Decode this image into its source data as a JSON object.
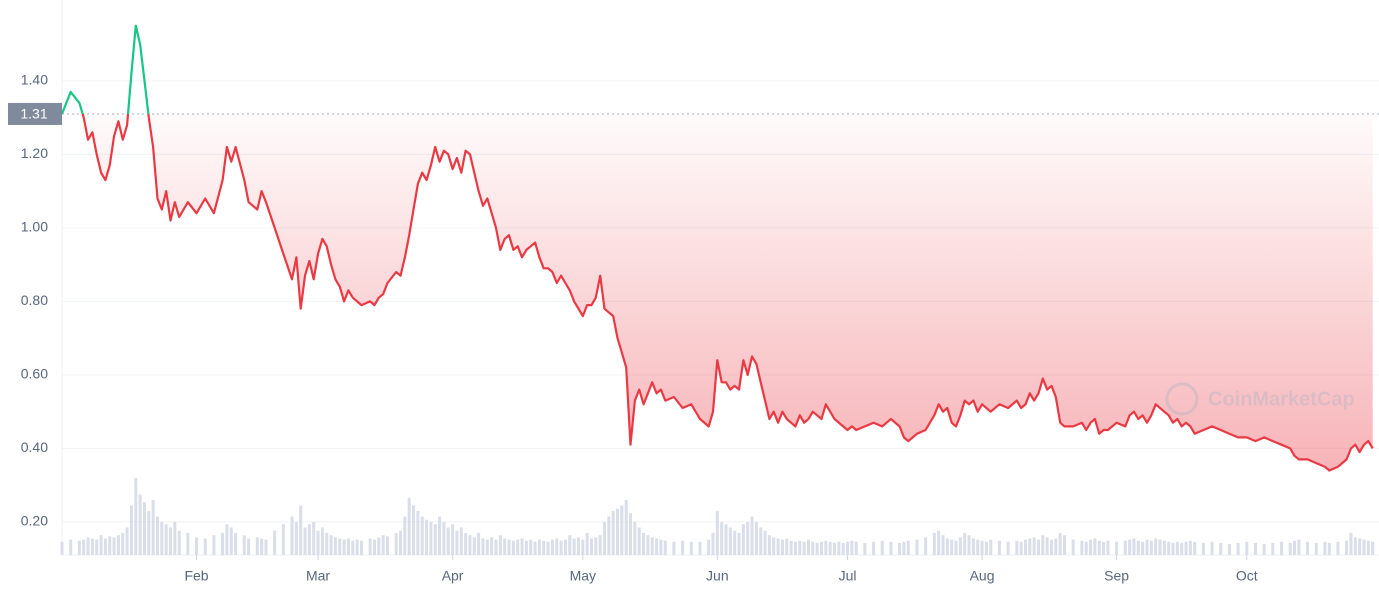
{
  "chart_data": {
    "type": "line",
    "watermark": "CoinMarketCap",
    "reference_line": 1.31,
    "color_up": "#16c784",
    "color_down": "#ea3943",
    "volume_color": "#cfd6e4",
    "xlim": [
      0,
      303
    ],
    "xticks": [
      {
        "value": 31,
        "label": "Feb"
      },
      {
        "value": 59,
        "label": "Mar"
      },
      {
        "value": 90,
        "label": "Apr"
      },
      {
        "value": 120,
        "label": "May"
      },
      {
        "value": 151,
        "label": "Jun"
      },
      {
        "value": 181,
        "label": "Jul"
      },
      {
        "value": 212,
        "label": "Aug"
      },
      {
        "value": 243,
        "label": "Sep"
      },
      {
        "value": 273,
        "label": "Oct"
      }
    ],
    "ylim": [
      0.11,
      1.62
    ],
    "yticks": [
      {
        "value": 0.2,
        "label": "0.20"
      },
      {
        "value": 0.4,
        "label": "0.40"
      },
      {
        "value": 0.6,
        "label": "0.60"
      },
      {
        "value": 0.8,
        "label": "0.80"
      },
      {
        "value": 1.0,
        "label": "1.00"
      },
      {
        "value": 1.2,
        "label": "1.20"
      },
      {
        "value": 1.4,
        "label": "1.40"
      }
    ],
    "grid": true,
    "y2lim": [
      0,
      100
    ],
    "x": [
      0,
      2,
      4,
      5,
      6,
      7,
      8,
      9,
      10,
      11,
      12,
      13,
      14,
      15,
      16,
      17,
      18,
      19,
      20,
      21,
      22,
      23,
      24,
      25,
      26,
      27,
      29,
      31,
      33,
      35,
      37,
      38,
      39,
      40,
      42,
      43,
      45,
      46,
      47,
      49,
      51,
      53,
      54,
      55,
      56,
      57,
      58,
      59,
      60,
      61,
      62,
      63,
      64,
      65,
      66,
      67,
      68,
      69,
      71,
      72,
      73,
      74,
      75,
      77,
      78,
      79,
      80,
      81,
      82,
      83,
      84,
      85,
      86,
      87,
      88,
      89,
      90,
      91,
      92,
      93,
      94,
      95,
      96,
      97,
      98,
      99,
      100,
      101,
      102,
      103,
      104,
      105,
      106,
      107,
      108,
      109,
      110,
      111,
      112,
      113,
      114,
      115,
      116,
      117,
      118,
      119,
      120,
      121,
      122,
      123,
      124,
      125,
      126,
      127,
      128,
      129,
      130,
      131,
      132,
      133,
      134,
      135,
      136,
      137,
      138,
      139,
      141,
      143,
      145,
      147,
      149,
      150,
      151,
      152,
      153,
      154,
      155,
      156,
      157,
      158,
      159,
      160,
      161,
      162,
      163,
      164,
      165,
      166,
      167,
      168,
      169,
      170,
      171,
      172,
      173,
      174,
      175,
      176,
      177,
      178,
      179,
      180,
      181,
      182,
      183,
      185,
      187,
      189,
      191,
      193,
      194,
      195,
      197,
      199,
      201,
      202,
      203,
      204,
      205,
      206,
      207,
      208,
      209,
      210,
      211,
      212,
      213,
      214,
      216,
      218,
      220,
      221,
      222,
      223,
      224,
      225,
      226,
      227,
      228,
      229,
      230,
      231,
      233,
      235,
      236,
      237,
      238,
      239,
      240,
      241,
      243,
      245,
      246,
      247,
      248,
      249,
      250,
      251,
      252,
      253,
      254,
      255,
      256,
      257,
      258,
      259,
      260,
      261,
      263,
      265,
      267,
      269,
      271,
      273,
      275,
      277,
      279,
      281,
      283,
      284,
      285,
      287,
      289,
      291,
      292,
      294,
      296,
      297,
      298,
      299,
      300,
      301,
      302
    ],
    "values": [
      1.31,
      1.37,
      1.34,
      1.3,
      1.24,
      1.26,
      1.2,
      1.15,
      1.13,
      1.17,
      1.25,
      1.29,
      1.24,
      1.28,
      1.42,
      1.55,
      1.5,
      1.4,
      1.3,
      1.22,
      1.08,
      1.05,
      1.1,
      1.02,
      1.07,
      1.03,
      1.07,
      1.04,
      1.08,
      1.04,
      1.13,
      1.22,
      1.18,
      1.22,
      1.13,
      1.07,
      1.05,
      1.1,
      1.07,
      1.0,
      0.93,
      0.86,
      0.92,
      0.78,
      0.87,
      0.91,
      0.86,
      0.93,
      0.97,
      0.95,
      0.9,
      0.86,
      0.84,
      0.8,
      0.83,
      0.81,
      0.8,
      0.79,
      0.8,
      0.79,
      0.81,
      0.82,
      0.85,
      0.88,
      0.87,
      0.92,
      0.98,
      1.05,
      1.12,
      1.15,
      1.13,
      1.17,
      1.22,
      1.18,
      1.21,
      1.2,
      1.16,
      1.19,
      1.15,
      1.21,
      1.2,
      1.15,
      1.1,
      1.06,
      1.08,
      1.04,
      1.0,
      0.94,
      0.97,
      0.98,
      0.94,
      0.95,
      0.92,
      0.94,
      0.95,
      0.96,
      0.92,
      0.89,
      0.89,
      0.88,
      0.85,
      0.87,
      0.85,
      0.83,
      0.8,
      0.78,
      0.76,
      0.79,
      0.79,
      0.81,
      0.87,
      0.78,
      0.77,
      0.76,
      0.7,
      0.66,
      0.62,
      0.41,
      0.53,
      0.56,
      0.52,
      0.55,
      0.58,
      0.55,
      0.56,
      0.53,
      0.54,
      0.51,
      0.52,
      0.48,
      0.46,
      0.5,
      0.64,
      0.58,
      0.58,
      0.56,
      0.57,
      0.56,
      0.64,
      0.6,
      0.65,
      0.63,
      0.58,
      0.53,
      0.48,
      0.5,
      0.47,
      0.5,
      0.48,
      0.47,
      0.46,
      0.49,
      0.47,
      0.48,
      0.5,
      0.49,
      0.48,
      0.52,
      0.5,
      0.48,
      0.47,
      0.46,
      0.45,
      0.46,
      0.45,
      0.46,
      0.47,
      0.46,
      0.48,
      0.46,
      0.43,
      0.42,
      0.44,
      0.45,
      0.49,
      0.52,
      0.5,
      0.51,
      0.47,
      0.46,
      0.49,
      0.53,
      0.52,
      0.53,
      0.5,
      0.52,
      0.51,
      0.5,
      0.52,
      0.51,
      0.53,
      0.51,
      0.52,
      0.55,
      0.53,
      0.55,
      0.59,
      0.56,
      0.57,
      0.54,
      0.47,
      0.46,
      0.46,
      0.47,
      0.45,
      0.47,
      0.48,
      0.44,
      0.45,
      0.45,
      0.47,
      0.46,
      0.49,
      0.5,
      0.48,
      0.49,
      0.47,
      0.49,
      0.52,
      0.51,
      0.5,
      0.49,
      0.47,
      0.48,
      0.46,
      0.47,
      0.46,
      0.44,
      0.45,
      0.46,
      0.45,
      0.44,
      0.43,
      0.43,
      0.42,
      0.43,
      0.42,
      0.41,
      0.4,
      0.38,
      0.37,
      0.37,
      0.36,
      0.35,
      0.34,
      0.35,
      0.37,
      0.4,
      0.41,
      0.39,
      0.41,
      0.42,
      0.4
    ],
    "volume": [
      12,
      14,
      13,
      14,
      16,
      15,
      14,
      18,
      15,
      17,
      16,
      18,
      20,
      25,
      45,
      70,
      55,
      48,
      40,
      50,
      35,
      30,
      28,
      25,
      30,
      22,
      20,
      16,
      15,
      18,
      20,
      28,
      25,
      20,
      18,
      15,
      16,
      15,
      14,
      22,
      28,
      35,
      30,
      45,
      25,
      28,
      30,
      22,
      25,
      20,
      18,
      16,
      15,
      14,
      15,
      13,
      14,
      13,
      15,
      14,
      16,
      18,
      17,
      20,
      22,
      35,
      52,
      45,
      40,
      35,
      32,
      30,
      28,
      35,
      30,
      25,
      28,
      22,
      25,
      20,
      18,
      16,
      20,
      15,
      14,
      16,
      14,
      18,
      15,
      14,
      13,
      14,
      15,
      13,
      14,
      12,
      14,
      13,
      12,
      14,
      15,
      13,
      14,
      18,
      15,
      16,
      14,
      20,
      15,
      16,
      18,
      30,
      35,
      40,
      42,
      45,
      50,
      38,
      30,
      25,
      20,
      18,
      16,
      15,
      14,
      13,
      12,
      13,
      12,
      12,
      14,
      20,
      40,
      30,
      28,
      25,
      22,
      20,
      28,
      30,
      35,
      30,
      25,
      22,
      18,
      16,
      15,
      14,
      15,
      13,
      12,
      13,
      12,
      14,
      12,
      11,
      12,
      13,
      12,
      11,
      12,
      11,
      12,
      13,
      12,
      11,
      12,
      13,
      12,
      11,
      12,
      13,
      14,
      16,
      20,
      22,
      18,
      15,
      14,
      13,
      16,
      20,
      18,
      15,
      14,
      13,
      12,
      14,
      13,
      12,
      13,
      12,
      14,
      15,
      16,
      14,
      18,
      16,
      14,
      15,
      20,
      18,
      14,
      13,
      12,
      14,
      15,
      13,
      12,
      13,
      12,
      13,
      14,
      15,
      13,
      12,
      14,
      13,
      15,
      14,
      13,
      12,
      11,
      12,
      11,
      12,
      13,
      12,
      11,
      12,
      11,
      10,
      11,
      12,
      11,
      10,
      11,
      12,
      11,
      13,
      14,
      12,
      11,
      12,
      11,
      12,
      13,
      20,
      16,
      15,
      14,
      13,
      12
    ]
  }
}
